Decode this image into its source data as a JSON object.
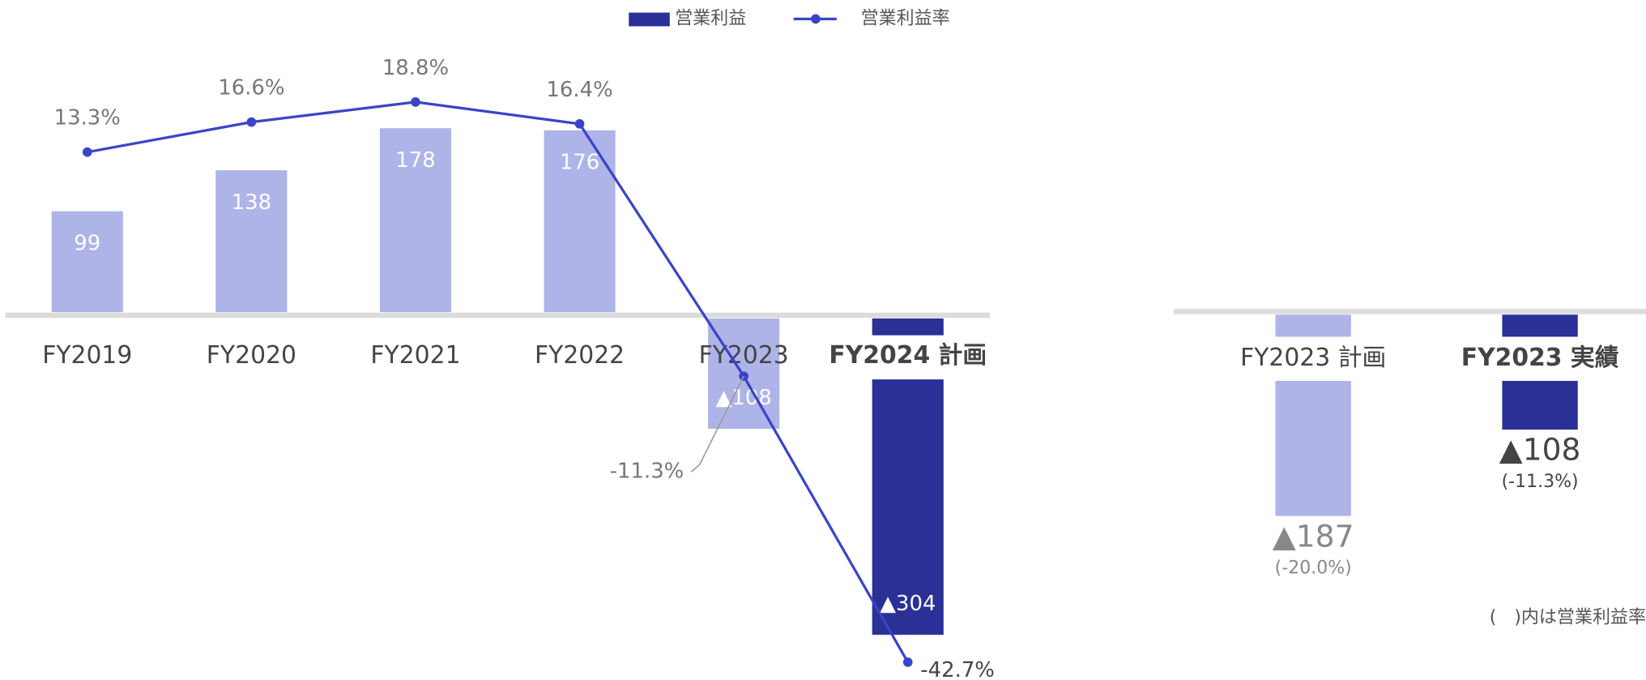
{
  "chart_data": [
    {
      "type": "bar_line",
      "categories": [
        "FY2019",
        "FY2020",
        "FY2021",
        "FY2022",
        "FY2023",
        "FY2024 計画"
      ],
      "series": [
        {
          "name": "営業利益",
          "color": "#aeb4e8",
          "highlight_color": "#2a3096",
          "values": [
            99,
            138,
            178,
            176,
            -108,
            -304
          ],
          "value_labels": [
            "99",
            "138",
            "178",
            "176",
            "▲108",
            "▲304"
          ]
        },
        {
          "name": "営業利益率",
          "color": "#3a44c8",
          "axis": "y2",
          "values": [
            13.3,
            16.6,
            18.8,
            16.4,
            -11.3,
            -42.7
          ],
          "value_labels": [
            "13.3%",
            "16.6%",
            "18.8%",
            "16.4%",
            "-11.3%",
            "-42.7%"
          ]
        }
      ],
      "ylim": [
        -350,
        300
      ],
      "y2lim": [
        -45,
        30
      ]
    },
    {
      "type": "bar",
      "categories": [
        "FY2023 計画",
        "FY2023 実績"
      ],
      "values": [
        -187,
        -108
      ],
      "value_labels": [
        "▲187",
        "▲108"
      ],
      "colors": [
        "#aeb4e8",
        "#2a3096"
      ],
      "rate_labels": [
        "(-20.0%)",
        "(-11.3%)"
      ],
      "ylim": [
        -340,
        285
      ],
      "note": "(　)内は営業利益率"
    }
  ]
}
